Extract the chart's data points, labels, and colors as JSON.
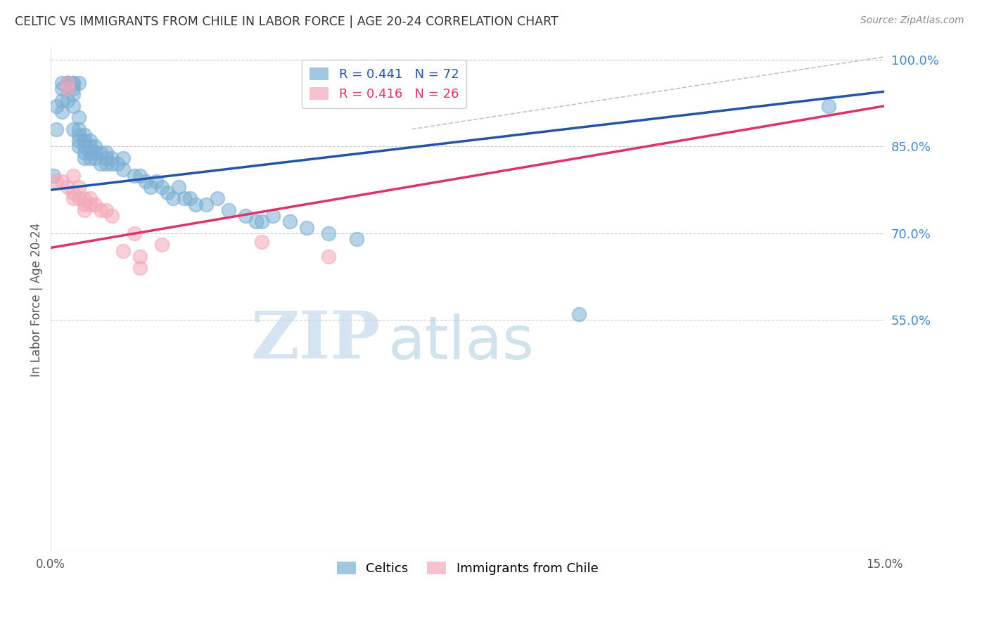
{
  "title": "CELTIC VS IMMIGRANTS FROM CHILE IN LABOR FORCE | AGE 20-24 CORRELATION CHART",
  "source": "Source: ZipAtlas.com",
  "ylabel": "In Labor Force | Age 20-24",
  "watermark_zip": "ZIP",
  "watermark_atlas": "atlas",
  "xlim": [
    0.0,
    0.15
  ],
  "ylim": [
    0.15,
    1.02
  ],
  "x_ticks": [
    0.0,
    0.025,
    0.05,
    0.075,
    0.1,
    0.125,
    0.15
  ],
  "x_tick_labels": [
    "0.0%",
    "",
    "",
    "",
    "",
    "",
    "15.0%"
  ],
  "y_ticks_right": [
    0.55,
    0.7,
    0.85,
    1.0
  ],
  "y_tick_labels_right": [
    "55.0%",
    "70.0%",
    "85.0%",
    "100.0%"
  ],
  "grid_color": "#cccccc",
  "blue_color": "#7aafd4",
  "pink_color": "#f4a8b8",
  "blue_label": "Celtics",
  "pink_label": "Immigrants from Chile",
  "blue_r": 0.441,
  "blue_n": 72,
  "pink_r": 0.416,
  "pink_n": 26,
  "blue_line_color": "#2255aa",
  "pink_line_color": "#dd3366",
  "ref_line_color": "#bbbbbb",
  "title_color": "#333333",
  "source_color": "#888888",
  "right_label_color": "#4488cc",
  "blue_line_x0": 0.0,
  "blue_line_y0": 0.775,
  "blue_line_x1": 0.15,
  "blue_line_y1": 0.945,
  "pink_line_x0": 0.0,
  "pink_line_y0": 0.675,
  "pink_line_x1": 0.15,
  "pink_line_y1": 0.92,
  "ref_line_x0": 0.065,
  "ref_line_y0": 0.88,
  "ref_line_x1": 0.15,
  "ref_line_y1": 1.005,
  "celtics_x": [
    0.0005,
    0.001,
    0.001,
    0.002,
    0.002,
    0.002,
    0.002,
    0.003,
    0.003,
    0.003,
    0.003,
    0.003,
    0.003,
    0.004,
    0.004,
    0.004,
    0.004,
    0.004,
    0.004,
    0.005,
    0.005,
    0.005,
    0.005,
    0.005,
    0.005,
    0.006,
    0.006,
    0.006,
    0.006,
    0.006,
    0.007,
    0.007,
    0.007,
    0.007,
    0.008,
    0.008,
    0.008,
    0.009,
    0.009,
    0.01,
    0.01,
    0.01,
    0.011,
    0.011,
    0.012,
    0.013,
    0.013,
    0.015,
    0.016,
    0.017,
    0.018,
    0.019,
    0.02,
    0.021,
    0.022,
    0.023,
    0.024,
    0.025,
    0.026,
    0.028,
    0.03,
    0.032,
    0.035,
    0.037,
    0.038,
    0.04,
    0.043,
    0.046,
    0.05,
    0.055,
    0.095,
    0.14
  ],
  "celtics_y": [
    0.8,
    0.92,
    0.88,
    0.96,
    0.95,
    0.93,
    0.91,
    0.96,
    0.96,
    0.96,
    0.96,
    0.95,
    0.93,
    0.96,
    0.96,
    0.95,
    0.94,
    0.92,
    0.88,
    0.96,
    0.9,
    0.88,
    0.87,
    0.86,
    0.85,
    0.87,
    0.86,
    0.85,
    0.84,
    0.83,
    0.86,
    0.85,
    0.84,
    0.83,
    0.85,
    0.84,
    0.83,
    0.84,
    0.82,
    0.84,
    0.83,
    0.82,
    0.83,
    0.82,
    0.82,
    0.83,
    0.81,
    0.8,
    0.8,
    0.79,
    0.78,
    0.79,
    0.78,
    0.77,
    0.76,
    0.78,
    0.76,
    0.76,
    0.75,
    0.75,
    0.76,
    0.74,
    0.73,
    0.72,
    0.72,
    0.73,
    0.72,
    0.71,
    0.7,
    0.69,
    0.56,
    0.92
  ],
  "chile_x": [
    0.001,
    0.002,
    0.003,
    0.003,
    0.003,
    0.004,
    0.004,
    0.004,
    0.005,
    0.005,
    0.006,
    0.006,
    0.006,
    0.007,
    0.007,
    0.008,
    0.009,
    0.01,
    0.011,
    0.013,
    0.015,
    0.016,
    0.016,
    0.02,
    0.038,
    0.05
  ],
  "chile_y": [
    0.79,
    0.79,
    0.96,
    0.95,
    0.78,
    0.8,
    0.77,
    0.76,
    0.78,
    0.76,
    0.76,
    0.75,
    0.74,
    0.76,
    0.75,
    0.75,
    0.74,
    0.74,
    0.73,
    0.67,
    0.7,
    0.66,
    0.64,
    0.68,
    0.685,
    0.66
  ]
}
